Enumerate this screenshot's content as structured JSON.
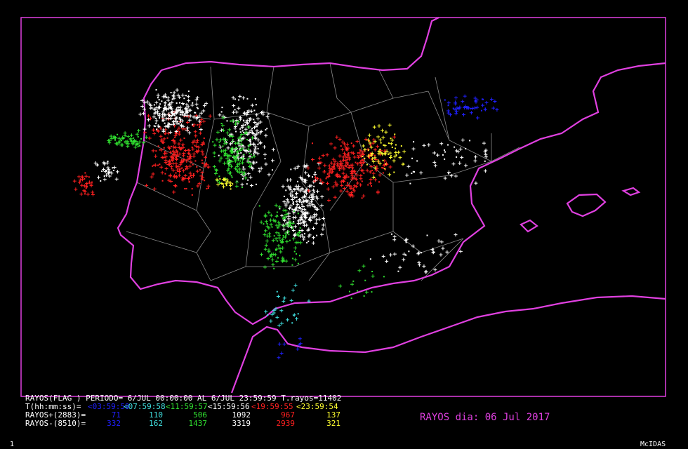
{
  "legend": {
    "header": "RAYOS(FLAG ) PERIODO= 6/JUL 00:00:00 AL  6/JUL 23:59:59  T.rayos=11402",
    "periods_label": "T(hh:mm:ss)=",
    "periods": [
      "<03:59:59",
      "<07:59:58",
      "<11:59:57",
      "<15:59:56",
      "<19:59:55",
      "<23:59:54"
    ],
    "positive": {
      "label": "RAYOS+(2883)=",
      "values": [
        71,
        110,
        506,
        1092,
        967,
        137
      ]
    },
    "negative": {
      "label": "RAYOS-(8510)=",
      "values": [
        332,
        162,
        1437,
        3319,
        2939,
        321
      ]
    }
  },
  "title": "RAYOS dia: 06 Jul 2017",
  "footer": {
    "left": "1",
    "right": "McIDAS"
  }
}
